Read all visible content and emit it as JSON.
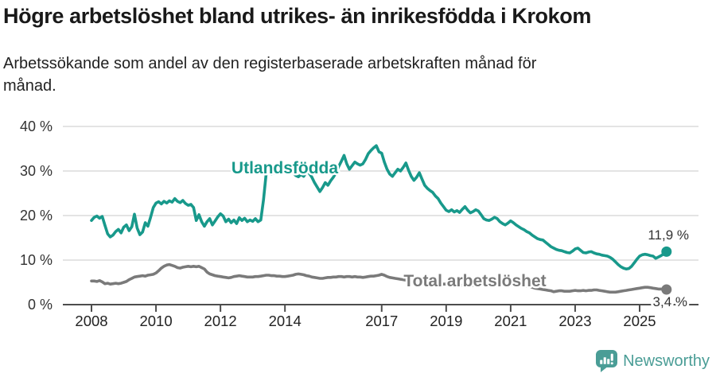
{
  "header": {
    "title": "Högre arbetslöshet bland utrikes- än inrikesfödda i Krokom",
    "subtitle": "Arbetssökande som andel av den registerbaserade arbetskraften månad för månad."
  },
  "colors": {
    "accent_teal": "#18998B",
    "series_gray": "#7A7A7A",
    "brand_teal": "#4A9D96",
    "grid": "#DBDBDB",
    "axis": "#4D4D4D",
    "tick_text": "#222222",
    "value_text": "#333333"
  },
  "chart_data": {
    "type": "line",
    "unit": "%",
    "ylim": [
      0,
      40
    ],
    "x_range": [
      2008,
      2025.92
    ],
    "grid": true,
    "legend": "inline-labels",
    "y_ticks": [
      {
        "value": 0,
        "label": "0 %"
      },
      {
        "value": 10,
        "label": "10 %"
      },
      {
        "value": 20,
        "label": "20 %"
      },
      {
        "value": 30,
        "label": "30 %"
      },
      {
        "value": 40,
        "label": "40 %"
      }
    ],
    "x_ticks": [
      {
        "value": 2008,
        "label": "2008"
      },
      {
        "value": 2010,
        "label": "2010"
      },
      {
        "value": 2012,
        "label": "2012"
      },
      {
        "value": 2014,
        "label": "2014"
      },
      {
        "value": 2017,
        "label": "2017"
      },
      {
        "value": 2019,
        "label": "2019"
      },
      {
        "value": 2021,
        "label": "2021"
      },
      {
        "value": 2023,
        "label": "2023"
      },
      {
        "value": 2025,
        "label": "2025"
      }
    ],
    "series": [
      {
        "name": "Utlandsfödda",
        "color": "#18998B",
        "end_label": "11,9 %",
        "end_value": 11.9,
        "cadence": "monthly",
        "start_year": 2008,
        "values": [
          18.9,
          19.6,
          19.9,
          19.4,
          19.8,
          17.8,
          15.9,
          15.2,
          15.6,
          16.4,
          16.9,
          16.1,
          17.4,
          17.9,
          16.6,
          17.5,
          20.3,
          17.2,
          15.7,
          16.3,
          18.4,
          17.6,
          19.6,
          21.8,
          22.8,
          23.1,
          22.6,
          23.2,
          22.8,
          23.3,
          23.0,
          23.8,
          23.2,
          22.9,
          23.4,
          22.7,
          22.3,
          22.5,
          21.8,
          18.9,
          20.2,
          18.6,
          17.6,
          18.6,
          19.3,
          17.9,
          18.8,
          19.7,
          20.4,
          19.9,
          18.6,
          19.2,
          18.4,
          19.0,
          18.2,
          19.5,
          18.9,
          19.4,
          18.6,
          19.0,
          18.7,
          19.3,
          18.6,
          19.0,
          23.5,
          29.3,
          29.9,
          29.3,
          29.6,
          30.1,
          29.5,
          29.8,
          30.2,
          29.8,
          30.0,
          29.6,
          29.0,
          28.7,
          29.2,
          28.8,
          29.9,
          29.5,
          28.6,
          27.4,
          26.4,
          25.4,
          26.3,
          27.4,
          26.8,
          27.8,
          28.6,
          29.6,
          31.0,
          32.2,
          33.5,
          31.6,
          30.4,
          31.2,
          32.0,
          31.6,
          31.3,
          31.6,
          32.6,
          33.9,
          34.6,
          35.2,
          35.7,
          34.3,
          34.0,
          32.0,
          30.4,
          29.3,
          28.8,
          29.6,
          30.4,
          30.0,
          30.8,
          31.8,
          30.2,
          28.8,
          27.9,
          28.6,
          29.6,
          28.2,
          26.8,
          26.1,
          25.6,
          25.2,
          24.4,
          23.8,
          22.8,
          22.0,
          21.2,
          20.9,
          21.3,
          20.8,
          21.1,
          20.7,
          21.4,
          22.0,
          21.2,
          20.6,
          20.9,
          21.3,
          21.0,
          20.2,
          19.3,
          19.0,
          18.9,
          19.2,
          19.6,
          19.3,
          18.6,
          18.2,
          17.9,
          18.3,
          18.8,
          18.4,
          17.9,
          17.5,
          17.1,
          16.8,
          16.4,
          16.1,
          15.6,
          15.2,
          14.8,
          14.6,
          14.5,
          14.0,
          13.5,
          13.0,
          12.7,
          12.4,
          12.2,
          12.1,
          11.9,
          11.7,
          11.6,
          12.0,
          12.5,
          12.7,
          12.2,
          11.7,
          11.6,
          11.8,
          11.9,
          11.6,
          11.4,
          11.3,
          11.1,
          11.0,
          10.9,
          10.6,
          10.2,
          9.6,
          9.0,
          8.5,
          8.2,
          8.0,
          8.1,
          8.6,
          9.4,
          10.2,
          10.9,
          11.2,
          11.3,
          11.2,
          11.0,
          10.9,
          10.4,
          10.7,
          11.0,
          11.4,
          11.9
        ]
      },
      {
        "name": "Total arbetslöshet",
        "color": "#7A7A7A",
        "end_label": "3,4 %",
        "end_value": 3.4,
        "cadence": "monthly",
        "start_year": 2008,
        "values": [
          5.3,
          5.3,
          5.2,
          5.4,
          5.1,
          4.7,
          4.8,
          4.6,
          4.7,
          4.8,
          4.7,
          4.8,
          5.0,
          5.2,
          5.6,
          5.9,
          6.2,
          6.3,
          6.4,
          6.5,
          6.4,
          6.6,
          6.7,
          6.8,
          7.1,
          7.6,
          8.2,
          8.6,
          8.9,
          9.0,
          8.8,
          8.6,
          8.3,
          8.2,
          8.4,
          8.5,
          8.6,
          8.5,
          8.6,
          8.5,
          8.6,
          8.3,
          8.0,
          7.3,
          6.9,
          6.7,
          6.5,
          6.4,
          6.3,
          6.2,
          6.1,
          6.0,
          6.1,
          6.3,
          6.4,
          6.5,
          6.4,
          6.3,
          6.2,
          6.2,
          6.2,
          6.3,
          6.3,
          6.4,
          6.5,
          6.6,
          6.6,
          6.5,
          6.5,
          6.4,
          6.4,
          6.3,
          6.3,
          6.4,
          6.5,
          6.6,
          6.8,
          6.9,
          6.8,
          6.7,
          6.5,
          6.4,
          6.2,
          6.1,
          6.0,
          5.9,
          5.9,
          6.0,
          6.1,
          6.1,
          6.2,
          6.2,
          6.3,
          6.3,
          6.2,
          6.3,
          6.3,
          6.2,
          6.3,
          6.2,
          6.2,
          6.1,
          6.2,
          6.3,
          6.4,
          6.4,
          6.5,
          6.6,
          6.8,
          6.6,
          6.3,
          6.1,
          6.0,
          5.9,
          5.8,
          5.7,
          5.6,
          5.5,
          5.4,
          5.3,
          5.3,
          5.2,
          5.1,
          5.1,
          5.0,
          4.9,
          4.9,
          4.8,
          4.8,
          4.7,
          4.7,
          4.6,
          4.6,
          4.5,
          4.5,
          4.4,
          4.4,
          4.4,
          4.3,
          4.3,
          4.3,
          4.3,
          4.3,
          4.4,
          4.4,
          4.5,
          4.7,
          4.9,
          5.0,
          5.2,
          5.2,
          5.1,
          5.1,
          5.0,
          5.0,
          4.9,
          4.8,
          4.7,
          4.5,
          4.4,
          4.3,
          4.2,
          4.1,
          4.0,
          3.9,
          3.7,
          3.6,
          3.5,
          3.4,
          3.3,
          3.2,
          3.1,
          2.9,
          3.0,
          3.1,
          3.1,
          3.0,
          3.0,
          3.0,
          3.1,
          3.2,
          3.1,
          3.1,
          3.2,
          3.1,
          3.2,
          3.2,
          3.3,
          3.3,
          3.2,
          3.1,
          3.0,
          2.9,
          2.8,
          2.8,
          2.8,
          2.9,
          3.0,
          3.1,
          3.2,
          3.3,
          3.4,
          3.5,
          3.6,
          3.7,
          3.8,
          3.9,
          3.9,
          3.8,
          3.7,
          3.6,
          3.5,
          3.5,
          3.4,
          3.4
        ]
      }
    ]
  },
  "footer": {
    "brand": "Newsworthy"
  }
}
